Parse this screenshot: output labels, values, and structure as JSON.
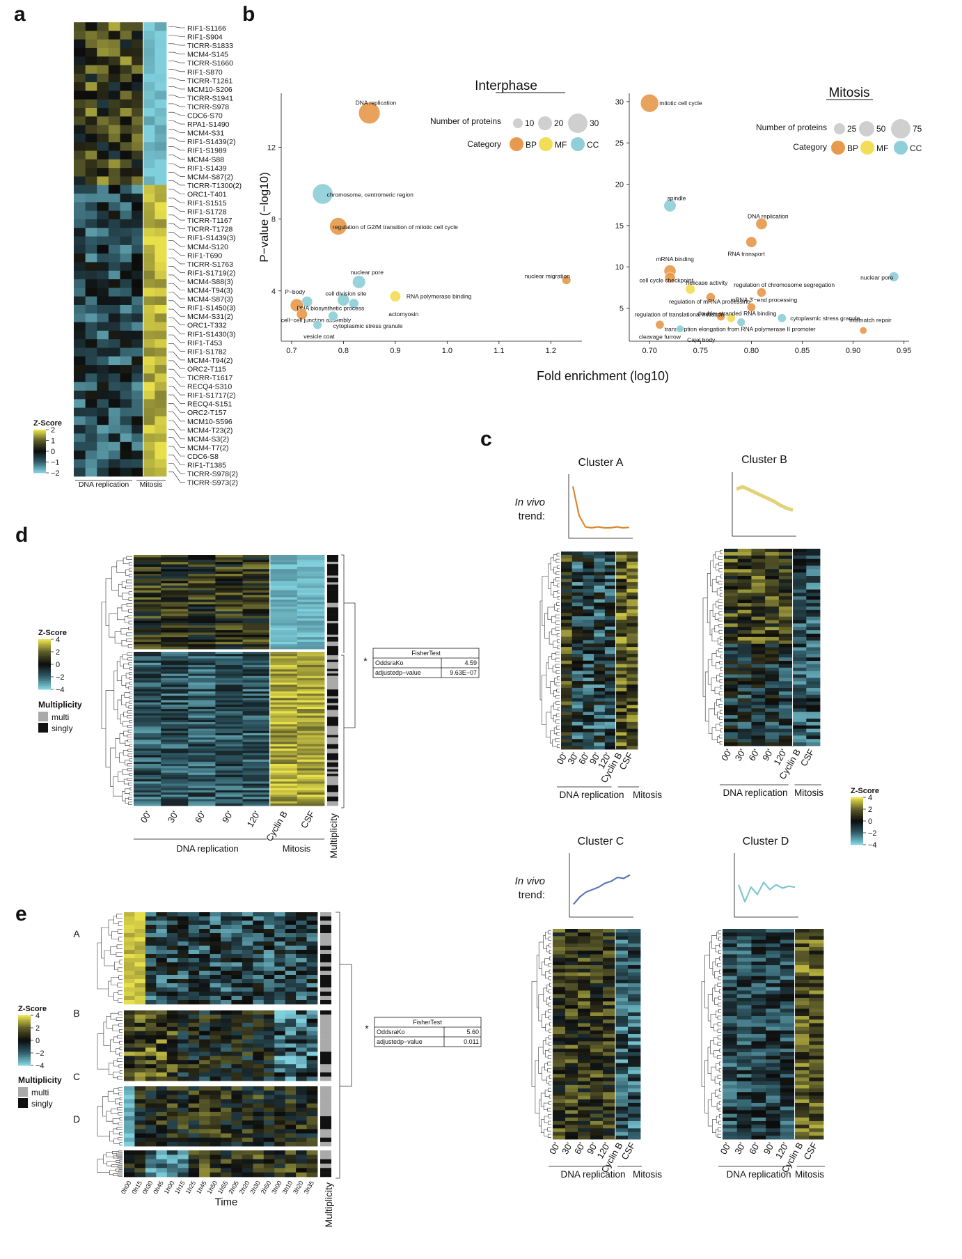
{
  "panels": {
    "a": "a",
    "b": "b",
    "c": "c",
    "d": "d",
    "e": "e"
  },
  "colors": {
    "yellow": "#e8e04a",
    "olive": "#5a5a2a",
    "black": "#0c0c0c",
    "teal": "#2f5a66",
    "cyan": "#7fcfdc",
    "bp": "#e79a4e",
    "mf": "#f3dc56",
    "cc": "#8fcfd8",
    "grey": "#cfcfcf"
  },
  "zscore_title": "Z-Score",
  "panel_a": {
    "row_labels": [
      "RIF1-S1166",
      "RIF1-S904",
      "TICRR-S1833",
      "MCM4-S145",
      "TICRR-S1660",
      "RIF1-S870",
      "TICRR-T1261",
      "MCM10-S206",
      "TICRR-S1941",
      "TICRR-S978",
      "CDC6-S70",
      "RPA1-S1490",
      "MCM4-S31",
      "RIF1-S1439(2)",
      "RIF1-S1989",
      "MCM4-S88",
      "RIF1-S1439",
      "MCM4-S87(2)",
      "TICRR-T1300(2)",
      "ORC1-T401",
      "RIF1-S1515",
      "RIF1-S1728",
      "TICRR-T1167",
      "TICRR-T1728",
      "RIF1-S1439(3)",
      "MCM4-S120",
      "RIF1-T690",
      "TICRR-S1763",
      "RIF1-S1719(2)",
      "MCM4-S88(3)",
      "MCM4-T94(3)",
      "MCM4-S87(3)",
      "RIF1-S1450(3)",
      "MCM4-S31(2)",
      "ORC1-T332",
      "RIF1-S1430(3)",
      "RIF1-T453",
      "RIF1-S1782",
      "MCM4-T94(2)",
      "ORC2-T115",
      "TICRR-T1617",
      "RECQ4-S310",
      "RIF1-S1717(2)",
      "RECQ4-S151",
      "ORC2-T157",
      "MCM10-S596",
      "MCM4-T23(2)",
      "MCM4-S3(2)",
      "MCM4-T7(2)",
      "CDC6-S8",
      "RIF1-T1385",
      "TICRR-S978(2)",
      "TICRR-S973(2)"
    ],
    "legend_ticks": [
      "2",
      "1",
      "0",
      "−1",
      "−2"
    ],
    "group_labels": [
      "DNA replication",
      "Mitosis"
    ]
  },
  "panel_b": {
    "ylabel": "P−value (−log10)",
    "xlabel": "Fold enrichment (log10)",
    "size_title": "Number of proteins",
    "category_title": "Category",
    "categories": [
      "BP",
      "MF",
      "CC"
    ],
    "interphase": {
      "title": "Interphase",
      "size_legend": [
        "10",
        "20",
        "30"
      ],
      "xticks": [
        "0.7",
        "0.8",
        "0.9",
        "1.0",
        "1.1",
        "1.2"
      ],
      "yticks": [
        "4",
        "8",
        "12"
      ],
      "points": [
        {
          "label": "DNA replication",
          "x": 0.85,
          "y": 13.9,
          "n": 30,
          "cat": "BP"
        },
        {
          "label": "chromosome, centromeric region",
          "x": 0.76,
          "y": 9.4,
          "n": 28,
          "cat": "CC"
        },
        {
          "label": "regulation of G2/M transition of mitotic cell cycle",
          "x": 0.79,
          "y": 7.6,
          "n": 22,
          "cat": "BP"
        },
        {
          "label": "nuclear pore",
          "x": 0.83,
          "y": 4.5,
          "n": 14,
          "cat": "CC"
        },
        {
          "label": "nuclear migration",
          "x": 1.23,
          "y": 4.6,
          "n": 6,
          "cat": "BP"
        },
        {
          "label": "RNA polymerase binding",
          "x": 0.9,
          "y": 3.7,
          "n": 10,
          "cat": "MF"
        },
        {
          "label": "cell division site",
          "x": 0.8,
          "y": 3.5,
          "n": 12,
          "cat": "CC"
        },
        {
          "label": "actomyosin",
          "x": 0.82,
          "y": 3.3,
          "n": 8,
          "cat": "CC"
        },
        {
          "label": "P−body",
          "x": 0.73,
          "y": 3.4,
          "n": 10,
          "cat": "CC"
        },
        {
          "label": "DNA biosynthetic process",
          "x": 0.71,
          "y": 3.2,
          "n": 14,
          "cat": "BP"
        },
        {
          "label": "cell−cell junction assembly",
          "x": 0.72,
          "y": 2.7,
          "n": 10,
          "cat": "BP"
        },
        {
          "label": "cytoplasmic stress granule",
          "x": 0.78,
          "y": 2.6,
          "n": 8,
          "cat": "CC"
        },
        {
          "label": "vesicle coat",
          "x": 0.75,
          "y": 2.1,
          "n": 6,
          "cat": "CC"
        }
      ]
    },
    "mitosis": {
      "title": "Mitosis",
      "size_legend": [
        "25",
        "50",
        "75"
      ],
      "xticks": [
        "0.70",
        "0.75",
        "0.80",
        "0.85",
        "0.90",
        "0.95"
      ],
      "yticks": [
        "5",
        "10",
        "15",
        "20",
        "25",
        "30"
      ],
      "points": [
        {
          "label": "mitotic cell cycle",
          "x": 0.7,
          "y": 29.8,
          "n": 75,
          "cat": "BP"
        },
        {
          "label": "spindle",
          "x": 0.72,
          "y": 17.4,
          "n": 40,
          "cat": "CC"
        },
        {
          "label": "DNA replication",
          "x": 0.81,
          "y": 15.2,
          "n": 35,
          "cat": "BP"
        },
        {
          "label": "RNA transport",
          "x": 0.8,
          "y": 13.0,
          "n": 32,
          "cat": "BP"
        },
        {
          "label": "mRNA binding",
          "x": 0.72,
          "y": 9.5,
          "n": 38,
          "cat": "BP"
        },
        {
          "label": "cell cycle checkpoint",
          "x": 0.72,
          "y": 8.7,
          "n": 30,
          "cat": "BP"
        },
        {
          "label": "nuclear pore",
          "x": 0.94,
          "y": 8.8,
          "n": 25,
          "cat": "CC"
        },
        {
          "label": "helicase activity",
          "x": 0.74,
          "y": 7.3,
          "n": 25,
          "cat": "MF"
        },
        {
          "label": "regulation of chromosome segregation",
          "x": 0.81,
          "y": 6.9,
          "n": 22,
          "cat": "BP"
        },
        {
          "label": "regulation of mRNA processing",
          "x": 0.76,
          "y": 6.3,
          "n": 22,
          "cat": "BP"
        },
        {
          "label": "mRNA 3′−end processing",
          "x": 0.8,
          "y": 5.1,
          "n": 18,
          "cat": "BP"
        },
        {
          "label": "regulation of translational initiation",
          "x": 0.77,
          "y": 4.0,
          "n": 18,
          "cat": "BP"
        },
        {
          "label": "double−stranded RNA binding",
          "x": 0.78,
          "y": 3.8,
          "n": 18,
          "cat": "MF"
        },
        {
          "label": "cytoplasmic stress granule",
          "x": 0.83,
          "y": 3.8,
          "n": 18,
          "cat": "CC"
        },
        {
          "label": "transcription elongation from RNA polymerase II promoter",
          "x": 0.79,
          "y": 3.3,
          "n": 16,
          "cat": "CC"
        },
        {
          "label": "cleavage furrow",
          "x": 0.71,
          "y": 3.0,
          "n": 18,
          "cat": "BP"
        },
        {
          "label": "Cajal body",
          "x": 0.73,
          "y": 2.5,
          "n": 12,
          "cat": "CC"
        },
        {
          "label": "mismatch repair",
          "x": 0.91,
          "y": 2.3,
          "n": 10,
          "cat": "BP"
        }
      ]
    }
  },
  "panel_c": {
    "in_vivo_line1": "In vivo",
    "in_vivo_line2": "trend:",
    "columns": [
      "00'",
      "30'",
      "60'",
      "90'",
      "120'",
      "Cyclin B",
      "CSF"
    ],
    "group_labels": [
      "DNA replication",
      "Mitosis"
    ],
    "clusters": [
      {
        "title": "Cluster A",
        "trend_color": "#d68a2e",
        "trend": [
          0.95,
          0.35,
          0.12,
          0.1,
          0.12,
          0.1,
          0.1,
          0.12,
          0.1,
          0.11
        ]
      },
      {
        "title": "Cluster B",
        "trend_color": "#e4d27a",
        "trend": [
          0.85,
          0.9,
          0.84,
          0.78,
          0.72,
          0.66,
          0.6,
          0.52,
          0.46,
          0.42
        ]
      },
      {
        "title": "Cluster C",
        "trend_color": "#5a78b8",
        "trend": [
          0.15,
          0.3,
          0.4,
          0.45,
          0.5,
          0.58,
          0.62,
          0.7,
          0.68,
          0.75
        ]
      },
      {
        "title": "Cluster D",
        "trend_color": "#7fc6d4",
        "trend": [
          0.55,
          0.2,
          0.5,
          0.35,
          0.6,
          0.45,
          0.55,
          0.48,
          0.52,
          0.5
        ]
      }
    ],
    "legend_ticks": [
      "4",
      "2",
      "0",
      "−2",
      "−4"
    ]
  },
  "panel_d": {
    "columns": [
      "00'",
      "30'",
      "60'",
      "90'",
      "120'",
      "Cyclin B",
      "CSF"
    ],
    "group_labels": [
      "DNA replication",
      "Mitosis"
    ],
    "multiplicity_label": "Multiplicity",
    "legend_ticks": [
      "4",
      "2",
      "0",
      "−2",
      "−4"
    ],
    "multiplicity_title": "Multiplicity",
    "multi": "multi",
    "singly": "singly",
    "fisher": {
      "title": "FisherTest",
      "rows": [
        {
          "k": "OddsraKo",
          "v": "4.59"
        },
        {
          "k": "adjustedp−value",
          "v": "9.63E−07"
        }
      ]
    },
    "star": "*"
  },
  "panel_e": {
    "columns": [
      "0h00",
      "0h15",
      "0h30",
      "0h45",
      "1h00",
      "1h15",
      "1h25",
      "1h45",
      "1h50",
      "1h55",
      "2h05",
      "2h20",
      "2h30",
      "2h50",
      "3h00",
      "3h10",
      "3h20",
      "3h35"
    ],
    "xlabel": "Time",
    "cluster_labels": [
      "A",
      "B",
      "C",
      "D"
    ],
    "multiplicity_label": "Multiplicity",
    "legend_ticks": [
      "4",
      "2",
      "0",
      "−2",
      "−4"
    ],
    "multiplicity_title": "Multiplicity",
    "multi": "multi",
    "singly": "singly",
    "fisher": {
      "title": "FisherTest",
      "rows": [
        {
          "k": "OddsraKo",
          "v": "5.60"
        },
        {
          "k": "adjustedp−value",
          "v": "0.011"
        }
      ]
    },
    "star": "*"
  }
}
